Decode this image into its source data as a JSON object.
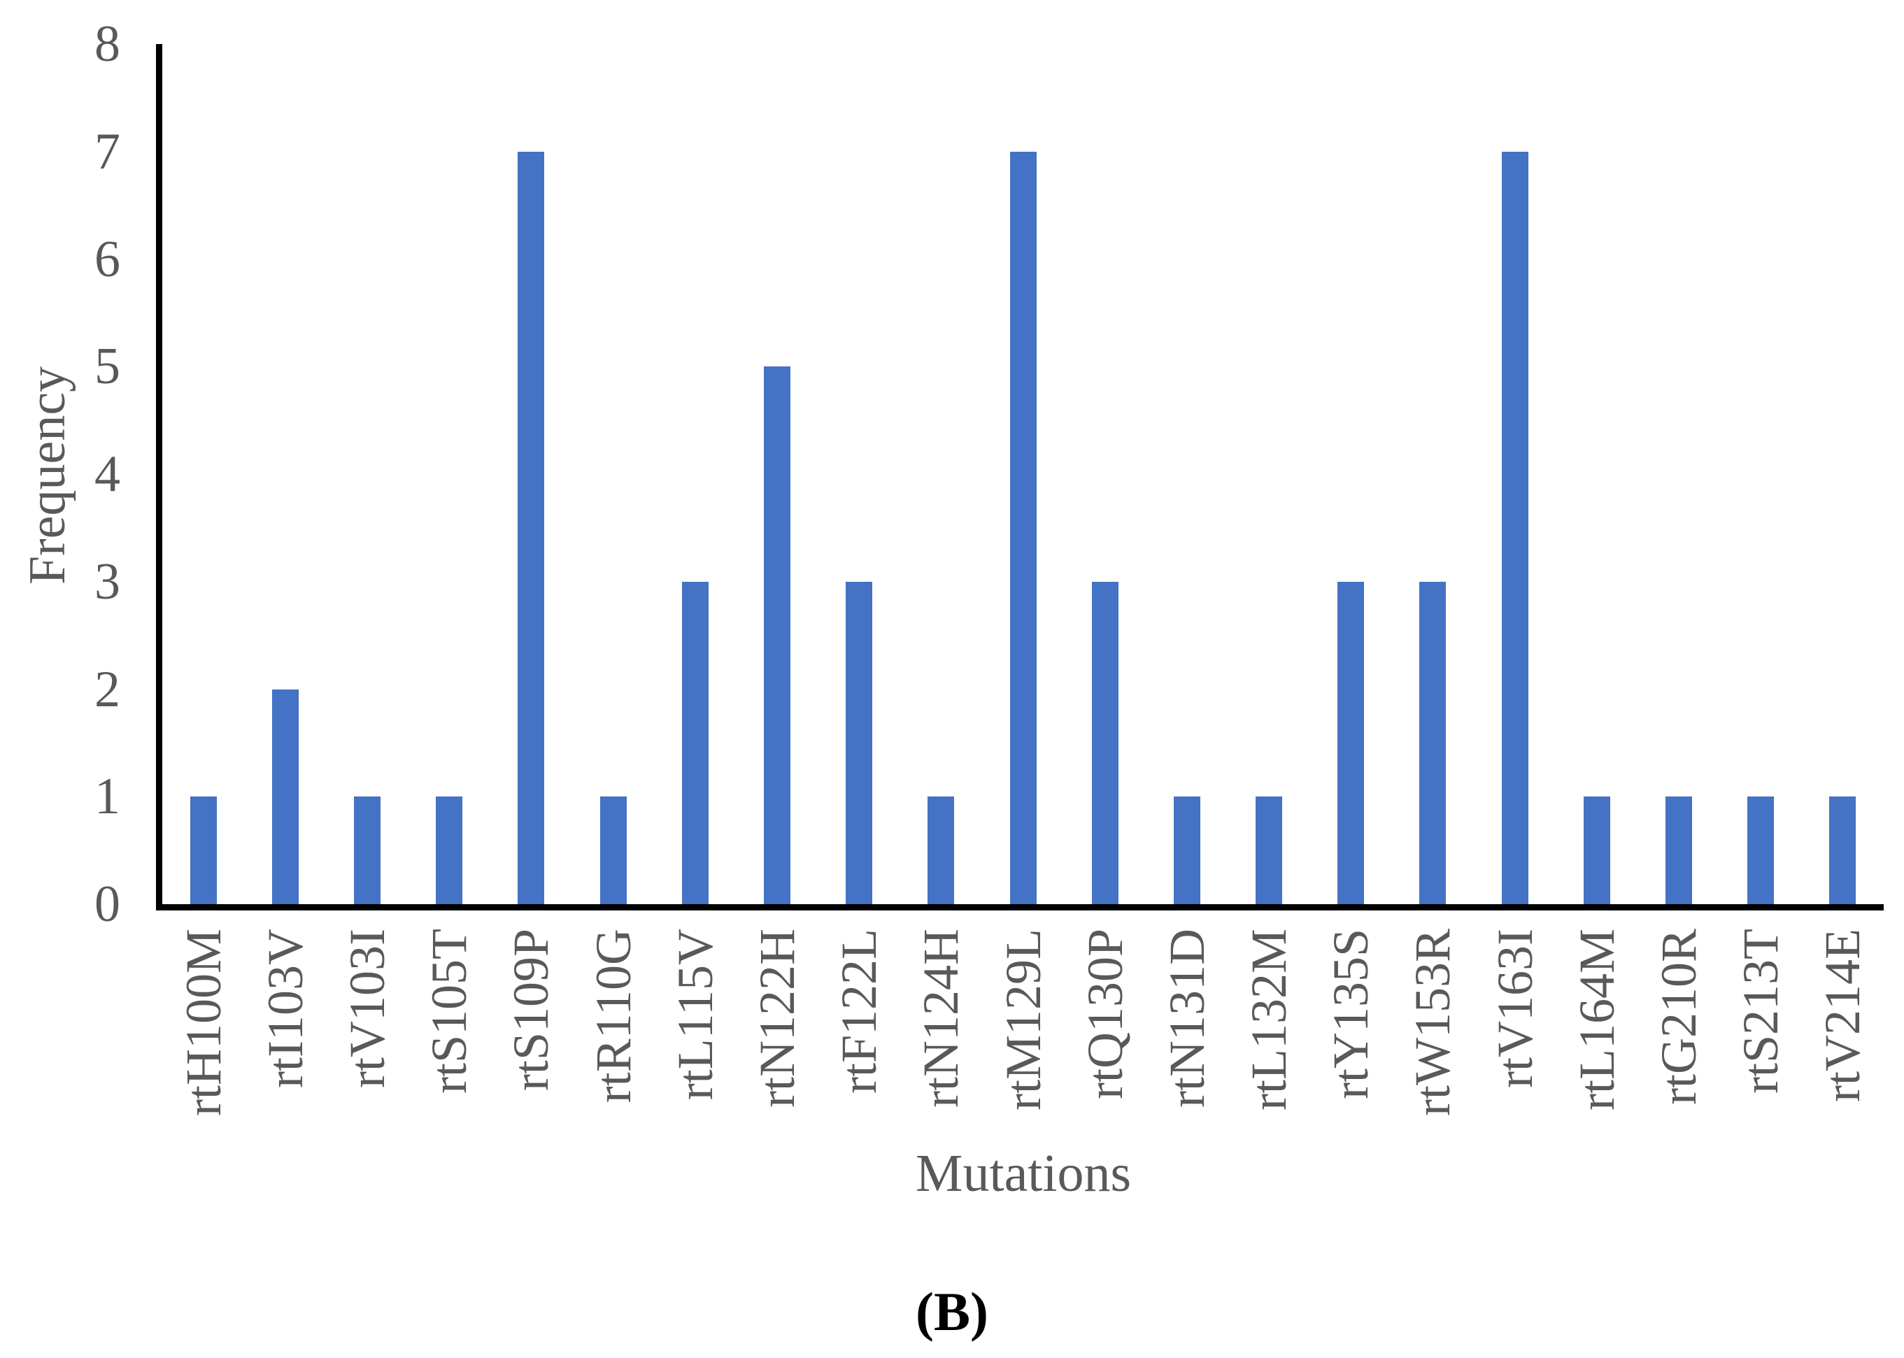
{
  "figure": {
    "caption": "(B)"
  },
  "chart_data": {
    "type": "bar",
    "title": "",
    "xlabel": "Mutations",
    "ylabel": "Frequency",
    "categories": [
      "rtH100M",
      "rtI103V",
      "rtV103I",
      "rtS105T",
      "rtS109P",
      "rtR110G",
      "rtL115V",
      "rtN122H",
      "rtF122L",
      "rtN124H",
      "rtM129L",
      "rtQ130P",
      "rtN131D",
      "rtL132M",
      "rtY135S",
      "rtW153R",
      "rtV163I",
      "rtL164M",
      "rtG210R",
      "rtS213T",
      "rtV214E"
    ],
    "values": [
      1,
      2,
      1,
      1,
      7,
      1,
      3,
      5,
      3,
      1,
      7,
      3,
      1,
      1,
      3,
      3,
      7,
      1,
      1,
      1,
      1
    ],
    "ylim": [
      0,
      8
    ],
    "yticks": [
      0,
      1,
      2,
      3,
      4,
      5,
      6,
      7,
      8
    ],
    "grid": "off",
    "legend": "none",
    "bar_color": "#4472C4",
    "axis_color": "#000000",
    "label_color": "#595959"
  }
}
